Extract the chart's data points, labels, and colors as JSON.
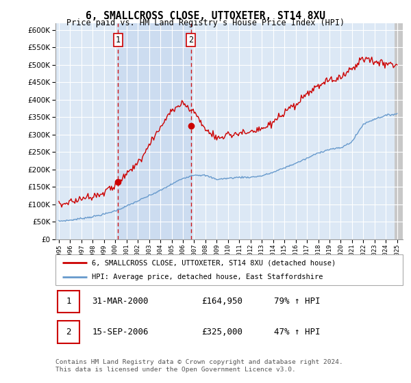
{
  "title": "6, SMALLCROSS CLOSE, UTTOXETER, ST14 8XU",
  "subtitle": "Price paid vs. HM Land Registry's House Price Index (HPI)",
  "hpi_legend": "HPI: Average price, detached house, East Staffordshire",
  "price_legend": "6, SMALLCROSS CLOSE, UTTOXETER, ST14 8XU (detached house)",
  "transaction1_date": "31-MAR-2000",
  "transaction1_price": 164950,
  "transaction1_hpi_text": "79% ↑ HPI",
  "transaction2_date": "15-SEP-2006",
  "transaction2_price": 325000,
  "transaction2_hpi_text": "47% ↑ HPI",
  "footer": "Contains HM Land Registry data © Crown copyright and database right 2024.\nThis data is licensed under the Open Government Licence v3.0.",
  "ylim": [
    0,
    620000
  ],
  "yticks": [
    0,
    50000,
    100000,
    150000,
    200000,
    250000,
    300000,
    350000,
    400000,
    450000,
    500000,
    550000,
    600000
  ],
  "xlim_start": 1994.7,
  "xlim_end": 2025.5,
  "price_color": "#cc0000",
  "hpi_color": "#6699cc",
  "bg_color": "#dce8f5",
  "grid_color": "#ffffff",
  "transaction1_x": 2000.25,
  "transaction2_x": 2006.71,
  "transaction1_marker_y": 164950,
  "transaction2_marker_y": 325000,
  "hpi_ctrl_x": [
    1995,
    1996,
    1997,
    1998,
    1999,
    2000,
    2001,
    2002,
    2003,
    2004,
    2005,
    2006,
    2007,
    2008,
    2009,
    2010,
    2011,
    2012,
    2013,
    2014,
    2015,
    2016,
    2017,
    2018,
    2019,
    2020,
    2021,
    2022,
    2023,
    2024,
    2025
  ],
  "hpi_ctrl_y": [
    52000,
    55000,
    60000,
    65000,
    72000,
    82000,
    95000,
    110000,
    125000,
    140000,
    158000,
    175000,
    185000,
    183000,
    172000,
    175000,
    178000,
    178000,
    182000,
    192000,
    205000,
    218000,
    232000,
    248000,
    258000,
    262000,
    280000,
    330000,
    345000,
    355000,
    360000
  ],
  "price_ctrl_x": [
    1995,
    1996,
    1997,
    1998,
    1999,
    2000,
    2001,
    2002,
    2003,
    2004,
    2005,
    2006,
    2007,
    2008,
    2009,
    2010,
    2011,
    2012,
    2013,
    2014,
    2015,
    2016,
    2017,
    2018,
    2019,
    2020,
    2021,
    2022,
    2023,
    2024,
    2025
  ],
  "price_ctrl_y": [
    100000,
    107000,
    117000,
    125000,
    135000,
    155000,
    185000,
    220000,
    270000,
    320000,
    370000,
    390000,
    365000,
    315000,
    290000,
    300000,
    305000,
    305000,
    315000,
    335000,
    360000,
    385000,
    415000,
    440000,
    455000,
    465000,
    490000,
    520000,
    510000,
    505000,
    500000
  ]
}
